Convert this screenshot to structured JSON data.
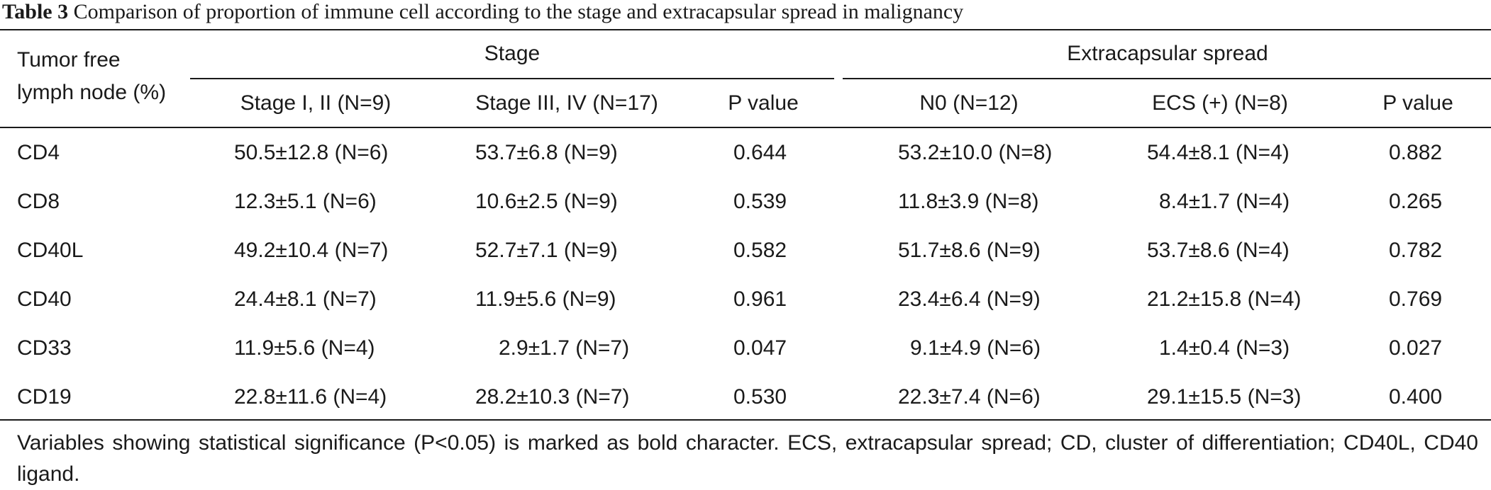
{
  "caption": {
    "label": "Table 3",
    "text": "Comparison of proportion of immune cell according to the stage and extracapsular spread in malignancy"
  },
  "header": {
    "row_label_line1": "Tumor free",
    "row_label_line2": "lymph node (%)",
    "group_stage": "Stage",
    "group_ecs": "Extracapsular spread",
    "columns": [
      "Stage I, II (N=9)",
      "Stage III, IV (N=17)",
      "P value",
      "N0 (N=12)",
      "ECS (+) (N=8)",
      "P value"
    ]
  },
  "rows": [
    {
      "marker": "CD4",
      "cells": [
        "50.5±12.8 (N=6)",
        "53.7±6.8 (N=9)",
        "0.644",
        "53.2±10.0 (N=8)",
        "54.4±8.1 (N=4)",
        "0.882"
      ]
    },
    {
      "marker": "CD8",
      "cells": [
        "12.3±5.1 (N=6)",
        "10.6±2.5 (N=9)",
        "0.539",
        "11.8±3.9 (N=8)",
        "8.4±1.7 (N=4)",
        "0.265"
      ]
    },
    {
      "marker": "CD40L",
      "cells": [
        "49.2±10.4 (N=7)",
        "52.7±7.1 (N=9)",
        "0.582",
        "51.7±8.6 (N=9)",
        "53.7±8.6 (N=4)",
        "0.782"
      ]
    },
    {
      "marker": "CD40",
      "cells": [
        "24.4±8.1 (N=7)",
        "11.9±5.6 (N=9)",
        "0.961",
        "23.4±6.4 (N=9)",
        "21.2±15.8 (N=4)",
        "0.769"
      ]
    },
    {
      "marker": "CD33",
      "cells": [
        "11.9±5.6 (N=4)",
        "2.9±1.7 (N=7)",
        "0.047",
        "9.1±4.9 (N=6)",
        "1.4±0.4 (N=3)",
        "0.027"
      ]
    },
    {
      "marker": "CD19",
      "cells": [
        "22.8±11.6 (N=4)",
        "28.2±10.3 (N=7)",
        "0.530",
        "22.3±7.4 (N=6)",
        "29.1±15.5 (N=3)",
        "0.400"
      ]
    }
  ],
  "footnote": "Variables showing statistical significance (P<0.05) is marked as bold character. ECS, extracapsular spread; CD, cluster of differentiation; CD40L, CD40 ligand."
}
